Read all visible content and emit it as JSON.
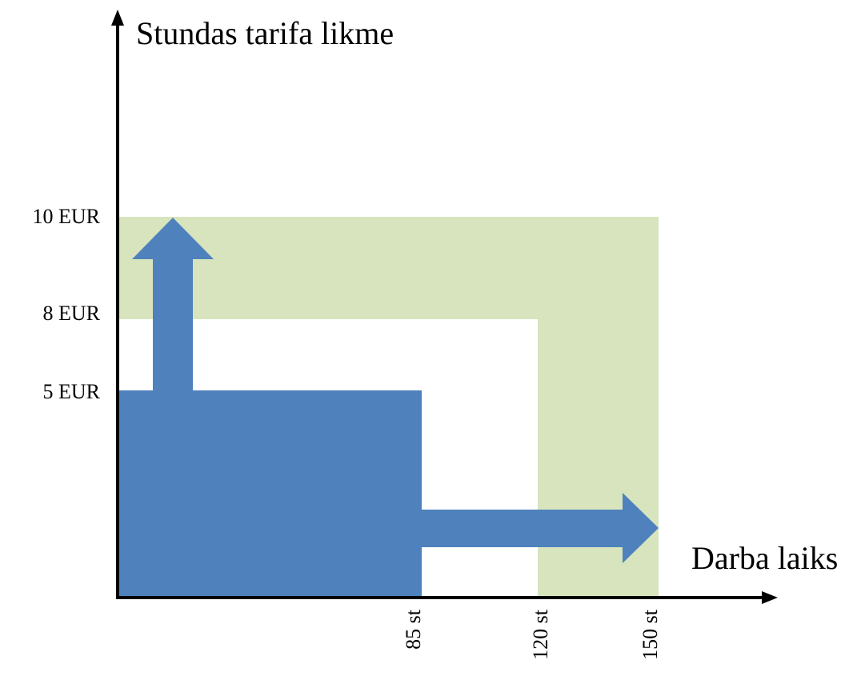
{
  "y_axis": {
    "title": "Stundas tarifa likme",
    "ticks": [
      {
        "value": 5,
        "label": "5 EUR"
      },
      {
        "value": 8,
        "label": "8 EUR"
      },
      {
        "value": 10,
        "label": "10 EUR"
      }
    ]
  },
  "x_axis": {
    "title": "Darba laiks",
    "ticks": [
      {
        "value": 85,
        "label": "85 st"
      },
      {
        "value": 120,
        "label": "120 st"
      },
      {
        "value": 150,
        "label": "150 st"
      }
    ]
  },
  "regions": {
    "base_rate": {
      "rate": 5,
      "hours": 85,
      "color": "#4f81bd"
    },
    "extended_zone": {
      "rate_from": 8,
      "rate_to": 10,
      "hours_from": 120,
      "hours_to": 150,
      "color": "#d7e4bd"
    }
  },
  "arrows": {
    "rate_increase": {
      "from_rate": 5,
      "to_rate": 10,
      "color": "#4f81bd"
    },
    "hours_increase": {
      "from_hours": 85,
      "to_hours": 150,
      "color": "#4f81bd"
    }
  },
  "colors": {
    "axis": "#000000",
    "background": "#ffffff"
  }
}
